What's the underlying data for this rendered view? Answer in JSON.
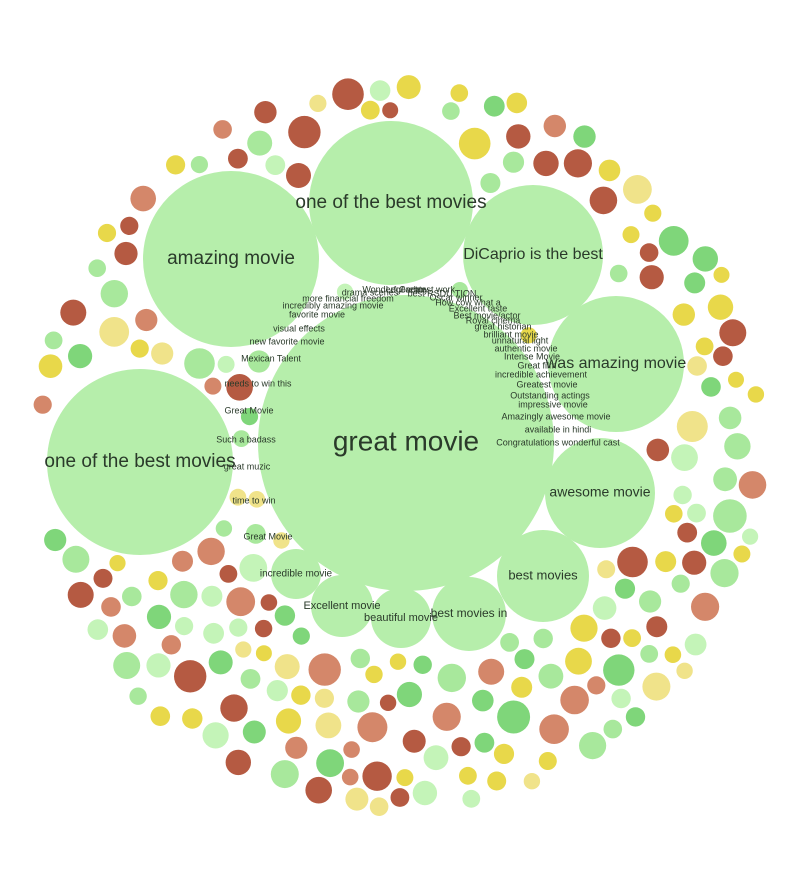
{
  "palette": {
    "label_bubble": "#b6eeab",
    "dark_green": "#7fd67a",
    "mid_green": "#a8e89c",
    "pale_green": "#c4f4b8",
    "gold": "#e8d84a",
    "pale_gold": "#f0e38a",
    "brick": "#b55a42",
    "salmon": "#d4876a",
    "text": "#2a3a2a"
  },
  "phrases": [
    {
      "text": "great movie",
      "size": "huge"
    },
    {
      "text": "one of the best movies",
      "size": "large"
    },
    {
      "text": "amazing movie",
      "size": "large"
    },
    {
      "text": "one of the best movies",
      "size": "large"
    },
    {
      "text": "DiCaprio is the best",
      "size": "large"
    },
    {
      "text": "was amazing movie",
      "size": "large"
    },
    {
      "text": "awesome movie",
      "size": "large"
    },
    {
      "text": "best movies",
      "size": "medium"
    },
    {
      "text": "best movies in",
      "size": "medium"
    },
    {
      "text": "beautiful movie",
      "size": "medium"
    },
    {
      "text": "Excellent movie",
      "size": "medium"
    },
    {
      "text": "incredible movie",
      "size": "medium"
    },
    {
      "text": "Great Movie",
      "size": "small"
    },
    {
      "text": "time to win",
      "size": "small"
    },
    {
      "text": "great muzic",
      "size": "small"
    },
    {
      "text": "Such a badass",
      "size": "small"
    },
    {
      "text": "Great Movie",
      "size": "small"
    },
    {
      "text": "needs to win this",
      "size": "small"
    },
    {
      "text": "Mexican Talent",
      "size": "small"
    },
    {
      "text": "new favorite movie",
      "size": "small"
    },
    {
      "text": "visual effects",
      "size": "small"
    },
    {
      "text": "favorite movie",
      "size": "small"
    },
    {
      "text": "incredibly amazing movie",
      "size": "small"
    },
    {
      "text": "more financial freedom",
      "size": "small"
    },
    {
      "text": "drama scenes",
      "size": "small"
    },
    {
      "text": "Wonderful actor",
      "size": "small"
    },
    {
      "text": "Legendary",
      "size": "small"
    },
    {
      "text": "Greatest work",
      "size": "small"
    },
    {
      "text": "best RSDU TION",
      "size": "small"
    },
    {
      "text": "Oscar winner",
      "size": "small"
    },
    {
      "text": "How cow what a",
      "size": "small"
    },
    {
      "text": "Excellent taste",
      "size": "small"
    },
    {
      "text": "Best movie/actor",
      "size": "small"
    },
    {
      "text": "Royal cinema",
      "size": "small"
    },
    {
      "text": "great historian",
      "size": "small"
    },
    {
      "text": "brilliant movie",
      "size": "small"
    },
    {
      "text": "unnatural light",
      "size": "small"
    },
    {
      "text": "authentic movie",
      "size": "small"
    },
    {
      "text": "Intense Movie",
      "size": "small"
    },
    {
      "text": "Great film",
      "size": "small"
    },
    {
      "text": "incredible achievement",
      "size": "small"
    },
    {
      "text": "Greatest movie",
      "size": "small"
    },
    {
      "text": "Outstanding actings",
      "size": "small"
    },
    {
      "text": "impressive movie",
      "size": "small"
    },
    {
      "text": "Amazingly awesome movie",
      "size": "small"
    },
    {
      "text": "available in hindi",
      "size": "small"
    },
    {
      "text": "Congratulations wonderful cast",
      "size": "small"
    }
  ]
}
